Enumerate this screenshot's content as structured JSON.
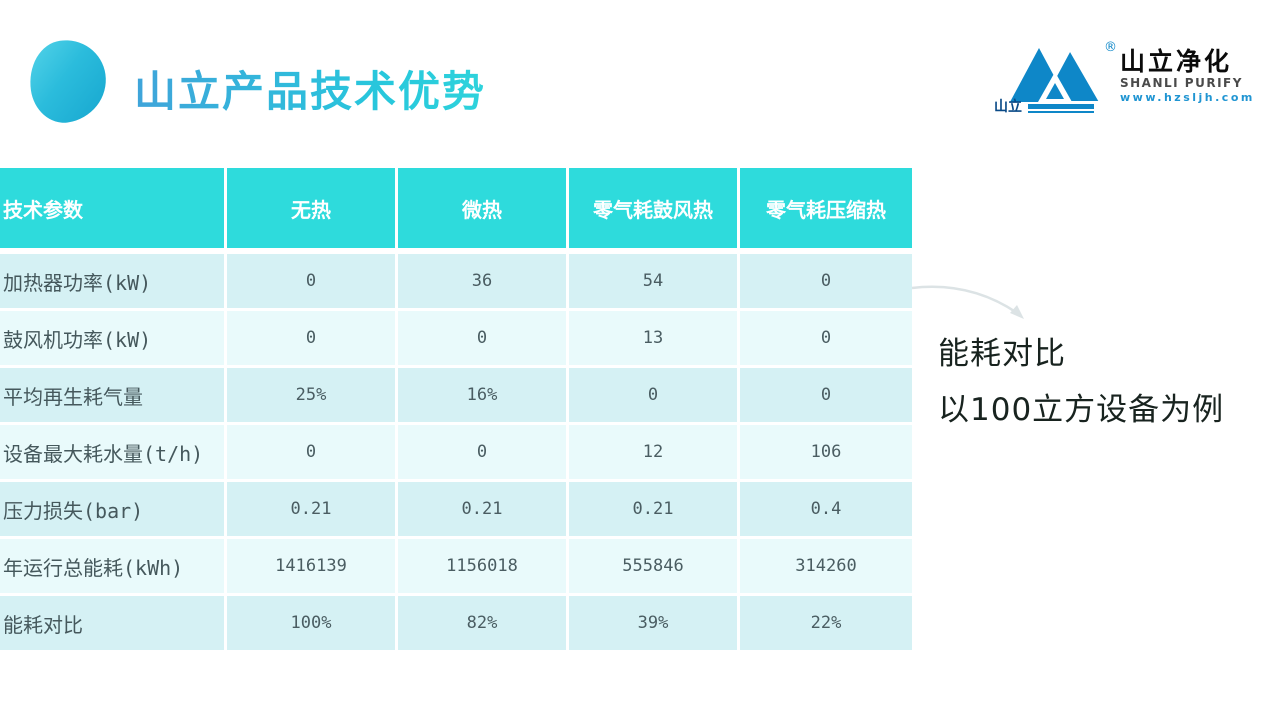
{
  "slide": {
    "title": "山立产品技术优势"
  },
  "logo": {
    "mark_text": "山立",
    "reg_mark": "®",
    "name_cn": "山立净化",
    "name_en": "SHANLI PURIFY",
    "url": "www.hzsljh.com"
  },
  "annotation": {
    "line1": "能耗对比",
    "line2": "以100立方设备为例"
  },
  "colors": {
    "table_header_bg": "#2edbdc",
    "table_row_odd": "#d5f1f4",
    "table_row_even": "#e9fafb",
    "title_accent": "#27c7dc",
    "logo_blue": "#0e87c8",
    "annotation_text": "#18231f"
  },
  "chart_data": {
    "type": "table",
    "title": "山立产品技术优势",
    "headers": [
      "技术参数",
      "无热",
      "微热",
      "零气耗鼓风热",
      "零气耗压缩热"
    ],
    "rows": [
      {
        "label": "加热器功率(kW)",
        "values": [
          "0",
          "36",
          "54",
          "0"
        ]
      },
      {
        "label": "鼓风机功率(kW)",
        "values": [
          "0",
          "0",
          "13",
          "0"
        ]
      },
      {
        "label": "平均再生耗气量",
        "values": [
          "25%",
          "16%",
          "0",
          "0"
        ]
      },
      {
        "label": "设备最大耗水量(t/h)",
        "values": [
          "0",
          "0",
          "12",
          "106"
        ]
      },
      {
        "label": "压力损失(bar)",
        "values": [
          "0.21",
          "0.21",
          "0.21",
          "0.4"
        ]
      },
      {
        "label": "年运行总能耗(kWh)",
        "values": [
          "1416139",
          "1156018",
          "555846",
          "314260"
        ]
      },
      {
        "label": "能耗对比",
        "values": [
          "100%",
          "82%",
          "39%",
          "22%"
        ]
      }
    ]
  }
}
